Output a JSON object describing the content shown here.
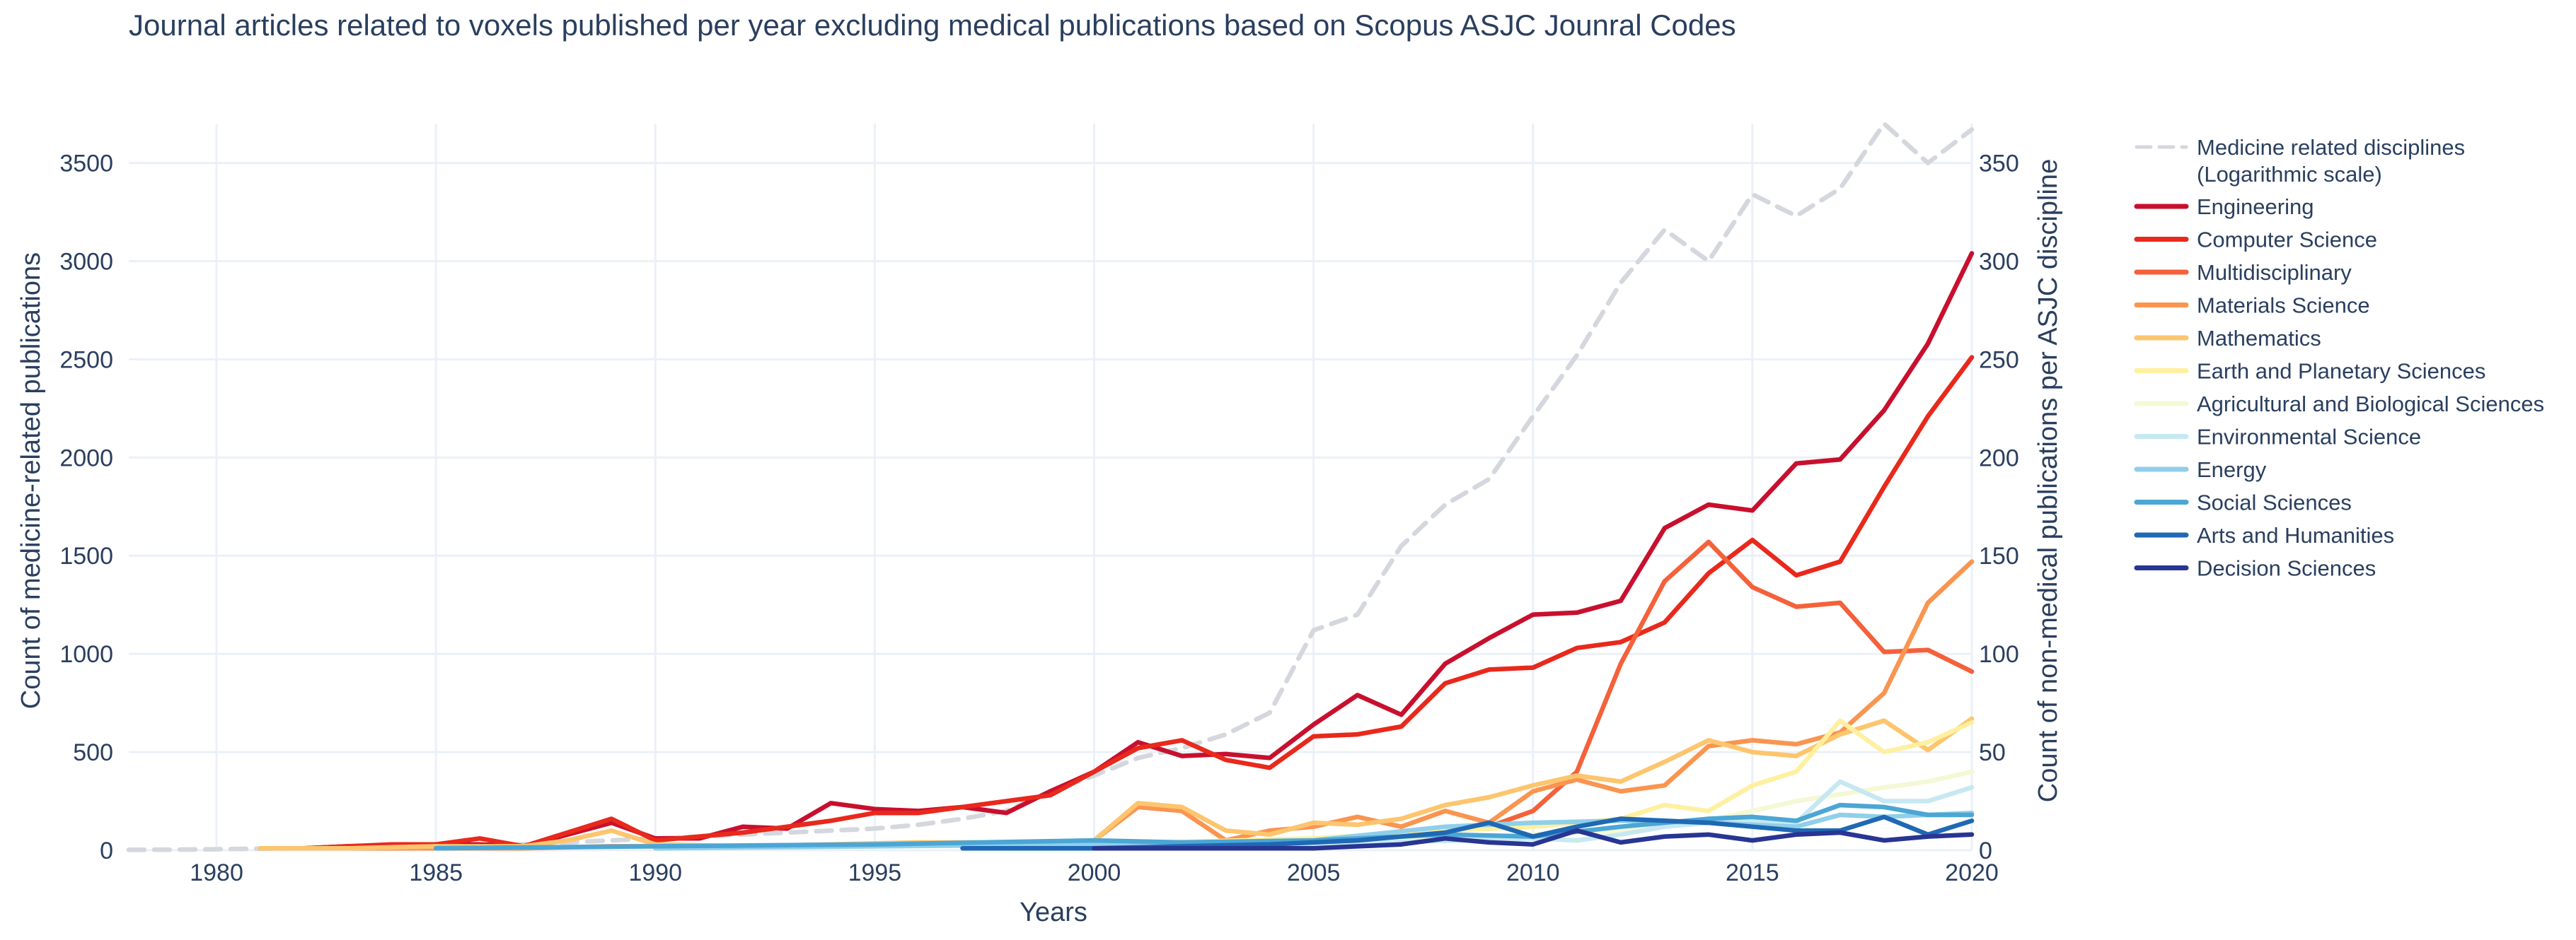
{
  "chart_data": {
    "type": "line",
    "title": "Journal articles related to voxels published per year excluding medical publications based on Scopus ASJC Jounral Codes",
    "xlabel": "Years",
    "ylabel_left": "Count of medicine-related publications",
    "ylabel_right": "Count of non-medical publications per ASJC discipline",
    "xlim": [
      1978,
      2020
    ],
    "ylim_left": [
      0,
      3700
    ],
    "ylim_right": [
      0,
      370
    ],
    "x_ticks": [
      1980,
      1985,
      1990,
      1995,
      2000,
      2005,
      2010,
      2015,
      2020
    ],
    "y_ticks_left": [
      0,
      500,
      1000,
      1500,
      2000,
      2500,
      3000,
      3500
    ],
    "y_ticks_right": [
      0,
      50,
      100,
      150,
      200,
      250,
      300,
      350
    ],
    "grid": true,
    "legend_position": "right",
    "series": [
      {
        "name": "Medicine related disciplines (Logarithmic scale)",
        "axis": "left",
        "color": "#d4d7dd",
        "dash": true,
        "x": [
          1978,
          1979,
          1980,
          1981,
          1982,
          1983,
          1984,
          1985,
          1986,
          1987,
          1988,
          1989,
          1990,
          1991,
          1992,
          1993,
          1994,
          1995,
          1996,
          1997,
          1998,
          1999,
          2000,
          2001,
          2002,
          2003,
          2004,
          2005,
          2006,
          2007,
          2008,
          2009,
          2010,
          2011,
          2012,
          2013,
          2014,
          2015,
          2016,
          2017,
          2018,
          2019,
          2020
        ],
        "y": [
          2,
          3,
          5,
          8,
          10,
          12,
          15,
          20,
          25,
          30,
          40,
          50,
          60,
          70,
          80,
          90,
          100,
          110,
          130,
          160,
          200,
          300,
          380,
          470,
          520,
          590,
          700,
          1120,
          1200,
          1550,
          1760,
          1890,
          2210,
          2520,
          2890,
          3160,
          3000,
          3340,
          3230,
          3370,
          3700,
          3500,
          3670
        ]
      },
      {
        "name": "Engineering",
        "axis": "right",
        "color": "#c8102e",
        "x": [
          1981,
          1982,
          1983,
          1984,
          1985,
          1986,
          1987,
          1988,
          1989,
          1990,
          1991,
          1992,
          1993,
          1994,
          1995,
          1996,
          1997,
          1998,
          1999,
          2000,
          2001,
          2002,
          2003,
          2004,
          2005,
          2006,
          2007,
          2008,
          2009,
          2010,
          2011,
          2012,
          2013,
          2014,
          2015,
          2016,
          2017,
          2018,
          2019,
          2020
        ],
        "y": [
          1,
          1,
          2,
          2,
          3,
          3,
          2,
          8,
          14,
          6,
          6,
          12,
          11,
          24,
          21,
          20,
          22,
          19,
          30,
          40,
          55,
          48,
          49,
          47,
          64,
          79,
          69,
          95,
          108,
          120,
          121,
          127,
          164,
          176,
          173,
          197,
          199,
          224,
          258,
          304
        ]
      },
      {
        "name": "Computer Science",
        "axis": "right",
        "color": "#e8291c",
        "x": [
          1981,
          1982,
          1983,
          1984,
          1985,
          1986,
          1987,
          1988,
          1989,
          1990,
          1991,
          1992,
          1993,
          1994,
          1995,
          1996,
          1997,
          1998,
          1999,
          2000,
          2001,
          2002,
          2003,
          2004,
          2005,
          2006,
          2007,
          2008,
          2009,
          2010,
          2011,
          2012,
          2013,
          2014,
          2015,
          2016,
          2017,
          2018,
          2019,
          2020
        ],
        "y": [
          1,
          1,
          2,
          3,
          3,
          6,
          2,
          9,
          16,
          5,
          7,
          9,
          12,
          15,
          19,
          19,
          22,
          25,
          28,
          40,
          52,
          56,
          46,
          42,
          58,
          59,
          63,
          85,
          92,
          93,
          103,
          106,
          116,
          141,
          158,
          140,
          147,
          185,
          221,
          251
        ]
      },
      {
        "name": "Multidisciplinary",
        "axis": "right",
        "color": "#f4613a",
        "x": [
          2004,
          2005,
          2006,
          2007,
          2008,
          2009,
          2010,
          2011,
          2012,
          2013,
          2014,
          2015,
          2016,
          2017,
          2018,
          2019,
          2020
        ],
        "y": [
          3,
          5,
          6,
          7,
          10,
          12,
          20,
          40,
          95,
          137,
          157,
          134,
          124,
          126,
          101,
          102,
          91
        ]
      },
      {
        "name": "Materials Science",
        "axis": "right",
        "color": "#f99550",
        "x": [
          1981,
          1983,
          1985,
          1987,
          1989,
          1991,
          1993,
          1995,
          1997,
          1999,
          2000,
          2001,
          2002,
          2003,
          2004,
          2005,
          2006,
          2007,
          2008,
          2009,
          2010,
          2011,
          2012,
          2013,
          2014,
          2015,
          2016,
          2017,
          2018,
          2019,
          2020
        ],
        "y": [
          1,
          1,
          1,
          1,
          2,
          2,
          2,
          3,
          3,
          4,
          5,
          22,
          20,
          5,
          10,
          12,
          17,
          12,
          20,
          14,
          30,
          36,
          30,
          33,
          53,
          56,
          54,
          60,
          80,
          126,
          147
        ]
      },
      {
        "name": "Mathematics",
        "axis": "right",
        "color": "#fdc56e",
        "x": [
          1981,
          1983,
          1985,
          1987,
          1988,
          1989,
          1990,
          1992,
          1994,
          1996,
          1998,
          2000,
          2001,
          2002,
          2003,
          2004,
          2005,
          2006,
          2007,
          2008,
          2009,
          2010,
          2011,
          2012,
          2013,
          2014,
          2015,
          2016,
          2017,
          2018,
          2019,
          2020
        ],
        "y": [
          1,
          1,
          2,
          2,
          5,
          10,
          3,
          2,
          3,
          4,
          4,
          5,
          24,
          22,
          10,
          8,
          14,
          13,
          16,
          23,
          27,
          33,
          38,
          35,
          45,
          56,
          50,
          48,
          59,
          66,
          51,
          67
        ]
      },
      {
        "name": "Earth and Planetary Sciences",
        "axis": "right",
        "color": "#fef0a0",
        "x": [
          1990,
          1995,
          2000,
          2005,
          2008,
          2010,
          2011,
          2012,
          2013,
          2014,
          2015,
          2016,
          2017,
          2018,
          2019,
          2020
        ],
        "y": [
          1,
          2,
          3,
          6,
          10,
          12,
          14,
          16,
          23,
          20,
          33,
          40,
          66,
          50,
          55,
          65
        ]
      },
      {
        "name": "Agricultural and Biological Sciences",
        "axis": "right",
        "color": "#f4f8d4",
        "x": [
          2000,
          2005,
          2010,
          2012,
          2014,
          2016,
          2018,
          2019,
          2020
        ],
        "y": [
          1,
          3,
          8,
          10,
          15,
          25,
          32,
          35,
          40
        ]
      },
      {
        "name": "Environmental Science",
        "axis": "right",
        "color": "#c6e8f2",
        "x": [
          2000,
          2005,
          2010,
          2011,
          2012,
          2013,
          2014,
          2015,
          2016,
          2017,
          2018,
          2019,
          2020
        ],
        "y": [
          1,
          3,
          6,
          5,
          8,
          12,
          14,
          15,
          14,
          35,
          25,
          25,
          32
        ]
      },
      {
        "name": "Energy",
        "axis": "right",
        "color": "#8fcfea",
        "x": [
          1990,
          1995,
          2000,
          2005,
          2008,
          2010,
          2012,
          2014,
          2016,
          2017,
          2018,
          2019,
          2020
        ],
        "y": [
          1,
          2,
          3,
          5,
          12,
          14,
          15,
          14,
          12,
          18,
          17,
          18,
          19
        ]
      },
      {
        "name": "Social Sciences",
        "axis": "right",
        "color": "#4ba6d5",
        "x": [
          1985,
          1990,
          1995,
          2000,
          2002,
          2005,
          2008,
          2010,
          2012,
          2014,
          2015,
          2016,
          2017,
          2018,
          2019,
          2020
        ],
        "y": [
          1,
          2,
          3,
          5,
          4,
          5,
          8,
          7,
          12,
          16,
          17,
          15,
          23,
          22,
          18,
          18
        ]
      },
      {
        "name": "Arts and Humanities",
        "axis": "right",
        "color": "#1f68b4",
        "x": [
          1997,
          2000,
          2002,
          2004,
          2006,
          2008,
          2009,
          2010,
          2011,
          2012,
          2013,
          2014,
          2015,
          2016,
          2017,
          2018,
          2019,
          2020
        ],
        "y": [
          1,
          1,
          2,
          3,
          5,
          9,
          14,
          7,
          12,
          16,
          15,
          14,
          12,
          10,
          10,
          17,
          8,
          15
        ]
      },
      {
        "name": "Decision Sciences",
        "axis": "right",
        "color": "#283593",
        "x": [
          2000,
          2003,
          2005,
          2007,
          2008,
          2009,
          2010,
          2011,
          2012,
          2013,
          2014,
          2015,
          2016,
          2017,
          2018,
          2019,
          2020
        ],
        "y": [
          1,
          1,
          1,
          3,
          6,
          4,
          3,
          10,
          4,
          7,
          8,
          5,
          8,
          9,
          5,
          7,
          8
        ]
      }
    ]
  }
}
